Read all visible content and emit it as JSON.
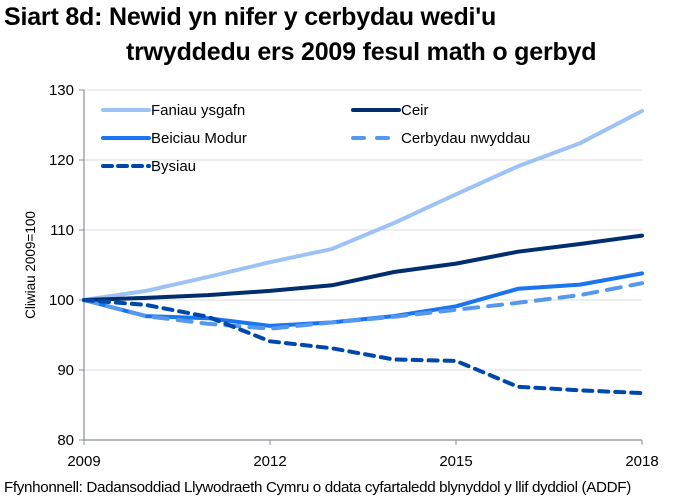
{
  "title_line1": "Siart 8d: Newid yn nifer y cerbydau wedi'u",
  "title_line2": "trwyddedu ers 2009 fesul math o gerbyd",
  "source": "Ffynhonnell: Dadansoddiad Llywodraeth Cymru o ddata cyfartaledd blynyddol y llif dyddiol (ADDF)",
  "chart_data": {
    "type": "line",
    "title": "Siart 8d: Newid yn nifer y cerbydau wedi'u trwyddedu ers 2009 fesul math o gerbyd",
    "xlabel": "",
    "ylabel": "Cliwiau  2009=100",
    "x": [
      2009,
      2010,
      2011,
      2012,
      2013,
      2014,
      2015,
      2016,
      2017,
      2018
    ],
    "x_ticks": [
      "2009",
      "2012",
      "2015",
      "2018"
    ],
    "y_ticks": [
      "80",
      "90",
      "100",
      "110",
      "120",
      "130"
    ],
    "ylim": [
      80,
      130
    ],
    "xlim": [
      2009,
      2018
    ],
    "grid": "horizontal",
    "legend_position": "top-left",
    "series": [
      {
        "name": "Faniau ysgafn",
        "color": "#9DC3F5",
        "style": "solid",
        "values": [
          100,
          101.3,
          103.3,
          105.4,
          107.3,
          111.0,
          115.1,
          119.1,
          122.4,
          127.0
        ]
      },
      {
        "name": "Ceir",
        "color": "#002E6E",
        "style": "solid",
        "values": [
          100,
          100.3,
          100.7,
          101.3,
          102.1,
          104.0,
          105.2,
          106.9,
          108.0,
          109.2
        ]
      },
      {
        "name": "Beiciau Modur",
        "color": "#1A75F0",
        "style": "solid",
        "values": [
          100,
          97.7,
          97.4,
          96.3,
          96.8,
          97.7,
          99.1,
          101.6,
          102.2,
          103.8
        ]
      },
      {
        "name": "Cerbydau nwyddau",
        "color": "#5599EE",
        "style": "dashed",
        "values": [
          100,
          97.7,
          96.6,
          95.9,
          96.8,
          97.6,
          98.6,
          99.6,
          100.7,
          102.4
        ]
      },
      {
        "name": "Bysiau",
        "color": "#0047AB",
        "style": "dotted",
        "values": [
          100,
          99.3,
          97.6,
          94.1,
          93.1,
          91.5,
          91.3,
          87.6,
          87.1,
          86.7
        ]
      }
    ]
  }
}
